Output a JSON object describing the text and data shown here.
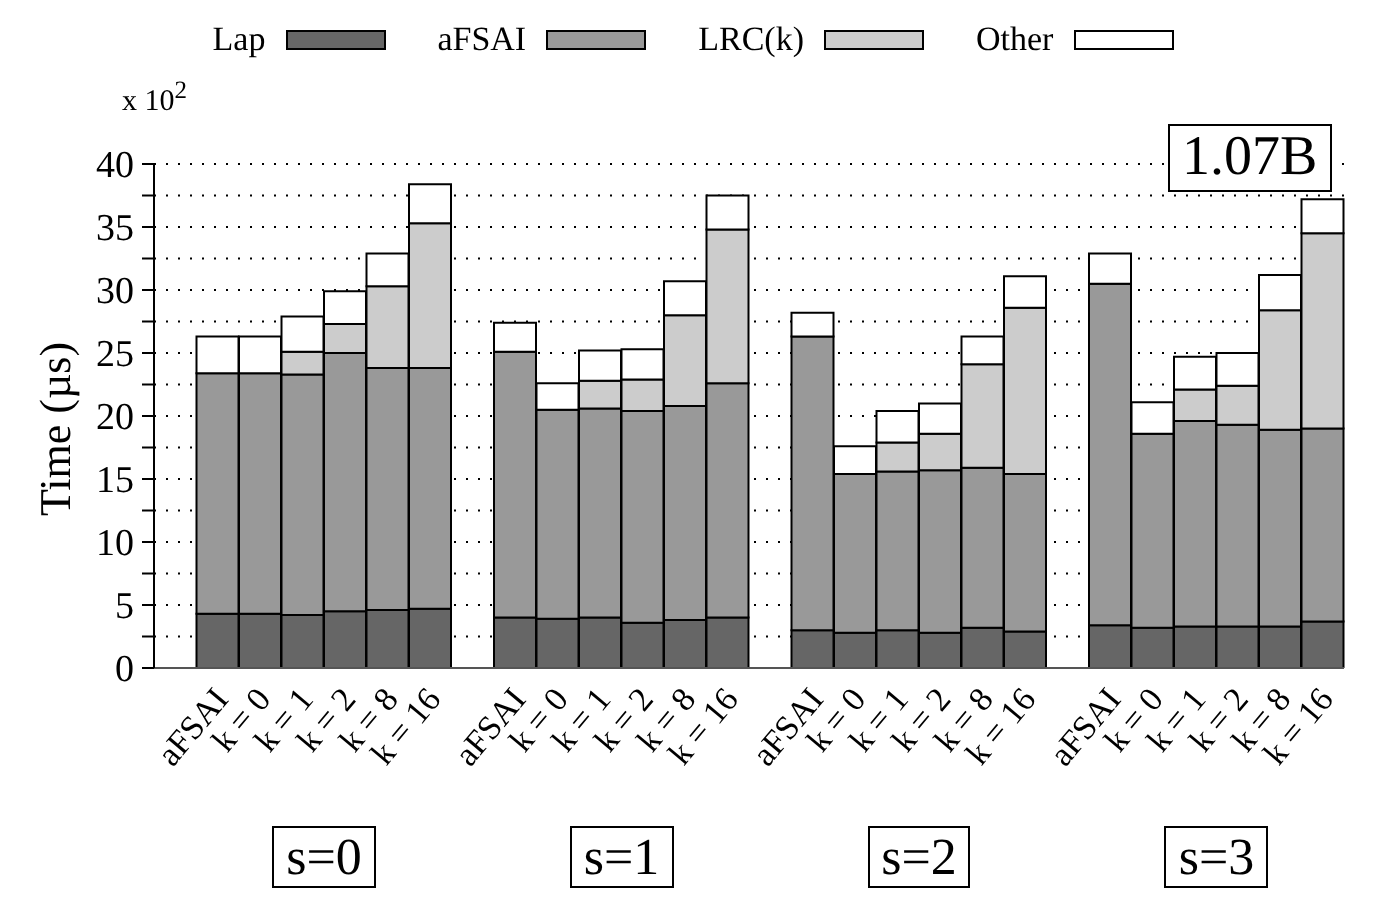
{
  "chart_data": {
    "type": "bar",
    "stacked": true,
    "ylabel": "Time (µs)",
    "legend": "top",
    "grid": "y",
    "categories": [
      null,
      "aFSAI",
      "k = 0",
      "k = 1",
      "k = 2",
      "k = 8",
      "k = 16",
      null,
      "aFSAI",
      "k = 0",
      "k = 1",
      "k = 2",
      "k = 8",
      "k = 16",
      null,
      "aFSAI",
      "k = 0",
      "k = 1",
      "k = 2",
      "k = 8",
      "k = 16",
      null,
      "aFSAI",
      "k = 0",
      "k = 1",
      "k = 2",
      "k = 8",
      "k = 16"
    ],
    "ylim": [
      0,
      40
    ],
    "yticks": [
      0,
      {
        "value": 2.5,
        "label": null
      },
      5,
      {
        "value": 7.5,
        "label": null
      },
      10,
      {
        "value": 12.5,
        "label": null
      },
      15,
      {
        "value": 17.5,
        "label": null
      },
      20,
      {
        "value": 22.5,
        "label": null
      },
      25,
      {
        "value": 27.5,
        "label": null
      },
      30,
      {
        "value": 32.5,
        "label": null
      },
      35,
      {
        "value": 37.5,
        "label": null
      },
      40
    ],
    "annotations": [
      "x 10$^{2}$",
      "1.07B",
      "s=0",
      "s=1",
      "s=2",
      "s=3"
    ],
    "series": [
      {
        "name": "Lap",
        "color": "#666666",
        "values": [
          null,
          4.3,
          4.3,
          4.2,
          4.5,
          4.6,
          4.7,
          null,
          4.0,
          3.9,
          4.0,
          3.6,
          3.8,
          4.0,
          null,
          3.0,
          2.8,
          3.0,
          2.8,
          3.2,
          2.9,
          null,
          3.4,
          3.2,
          3.3,
          3.3,
          3.3,
          3.7
        ]
      },
      {
        "name": "aFSAI",
        "color": "#999999",
        "values": [
          null,
          19.1,
          19.1,
          19.1,
          20.5,
          19.2,
          19.1,
          null,
          21.1,
          16.6,
          16.6,
          16.8,
          17.0,
          18.6,
          null,
          23.3,
          12.6,
          12.6,
          12.9,
          12.7,
          12.5,
          null,
          27.1,
          15.4,
          16.3,
          16.0,
          15.6,
          15.3
        ]
      },
      {
        "name": "LRC(k)",
        "color": "#cccccc",
        "values": [
          null,
          null,
          null,
          1.8,
          2.3,
          6.5,
          11.5,
          null,
          null,
          null,
          2.2,
          2.5,
          7.2,
          12.2,
          null,
          null,
          null,
          2.3,
          2.9,
          8.2,
          13.2,
          null,
          null,
          null,
          2.5,
          3.1,
          9.5,
          15.5
        ]
      },
      {
        "name": "Other",
        "color": "#ffffff",
        "values": [
          null,
          2.9,
          2.9,
          2.8,
          2.6,
          2.6,
          3.1,
          null,
          2.3,
          2.1,
          2.4,
          2.4,
          2.7,
          2.7,
          null,
          1.9,
          2.2,
          2.5,
          2.4,
          2.2,
          2.5,
          null,
          2.4,
          2.5,
          2.6,
          2.6,
          2.8,
          2.7
        ]
      }
    ]
  }
}
